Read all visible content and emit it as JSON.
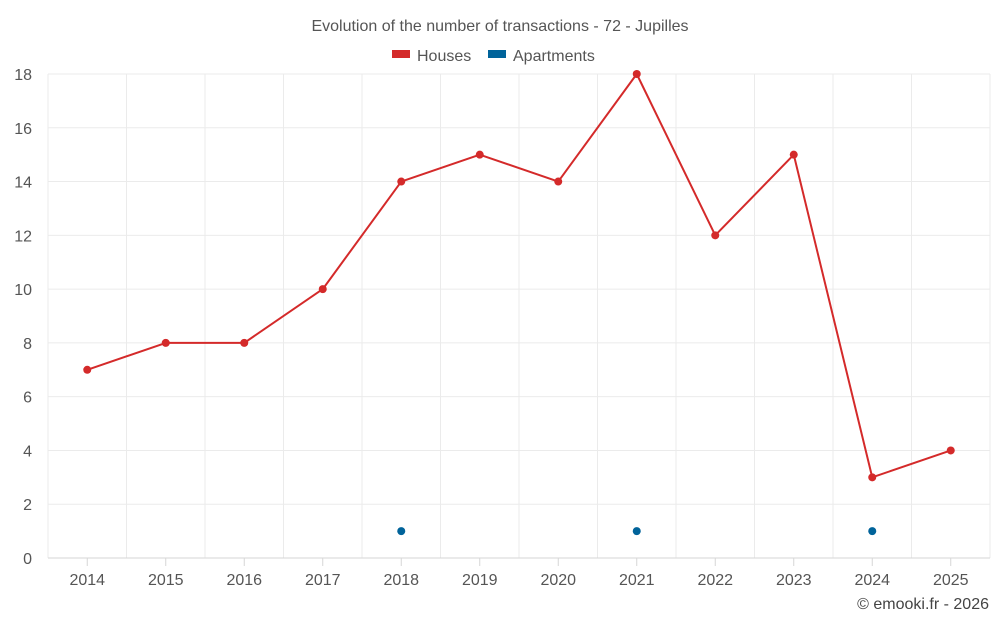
{
  "chart_data": {
    "type": "line",
    "title": "Evolution of the number of transactions - 72 - Jupilles",
    "categories": [
      "2014",
      "2015",
      "2016",
      "2017",
      "2018",
      "2019",
      "2020",
      "2021",
      "2022",
      "2023",
      "2024",
      "2025"
    ],
    "series": [
      {
        "name": "Houses",
        "color": "#d42a2a",
        "values": [
          7,
          8,
          8,
          10,
          14,
          15,
          14,
          18,
          12,
          15,
          3,
          4
        ]
      },
      {
        "name": "Apartments",
        "color": "#00639a",
        "values": [
          null,
          null,
          null,
          null,
          1,
          null,
          null,
          1,
          null,
          null,
          1,
          null
        ]
      }
    ],
    "y_ticks": [
      0,
      2,
      4,
      6,
      8,
      10,
      12,
      14,
      16,
      18
    ],
    "ylim": [
      0,
      18
    ],
    "grid": true,
    "legend_position": "top-center",
    "xlabel": "",
    "ylabel": ""
  },
  "credit": "© emooki.fr - 2026"
}
